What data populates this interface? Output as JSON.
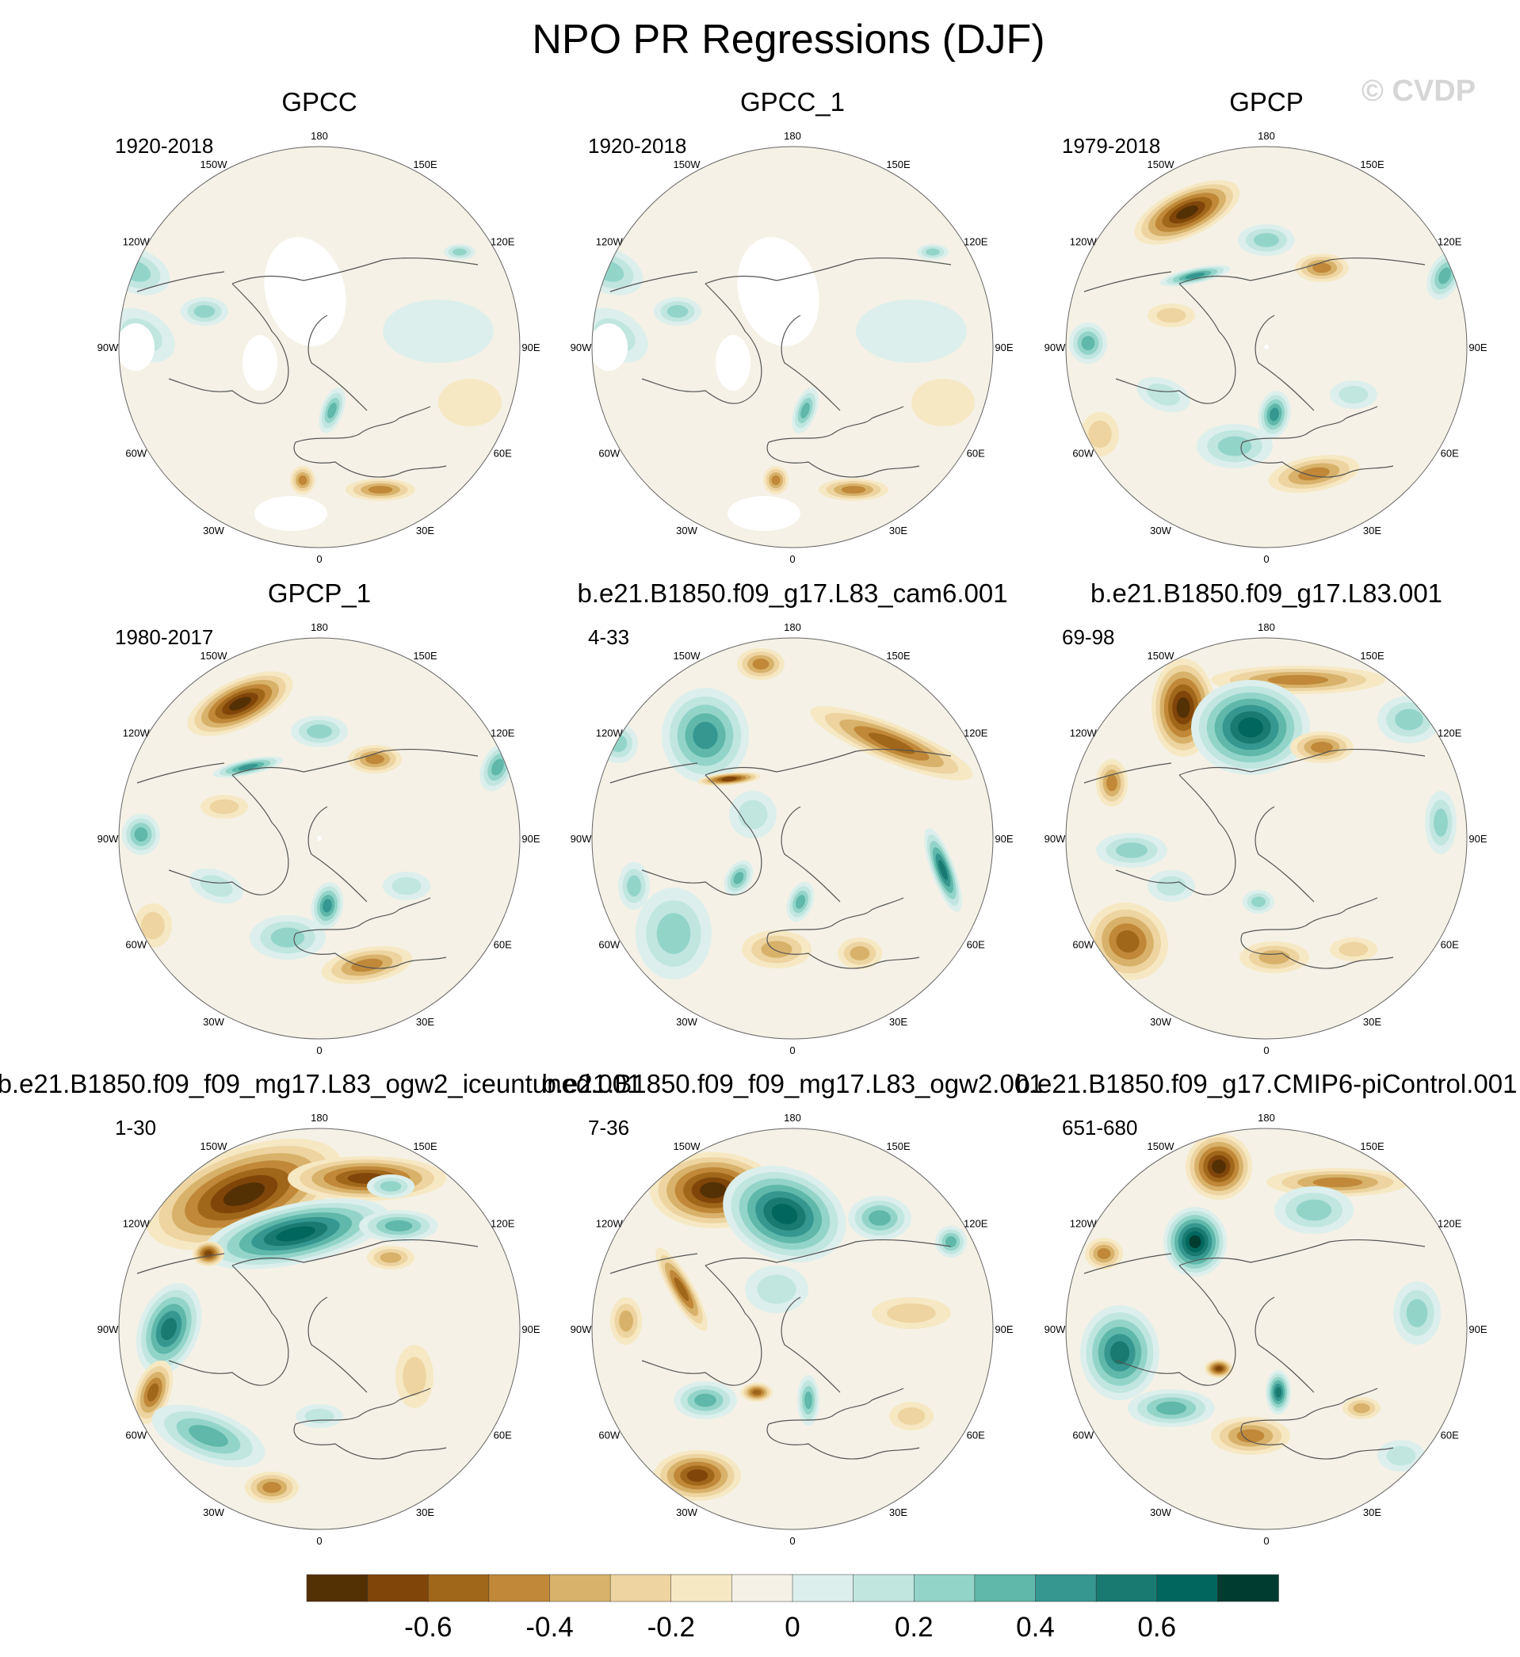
{
  "chart_data": {
    "type": "heatmap",
    "projection": "north-polar-stereographic",
    "title": "NPO PR Regressions (DJF)",
    "watermark": "© CVDP",
    "longitude_labels": [
      "180",
      "150E",
      "120E",
      "90E",
      "60E",
      "30E",
      "0",
      "30W",
      "60W",
      "90W",
      "120W",
      "150W"
    ],
    "panels": [
      {
        "name": "GPCC",
        "period": "1920-2018",
        "pattern": "obs-gpcc"
      },
      {
        "name": "GPCC_1",
        "period": "1920-2018",
        "pattern": "obs-gpcc"
      },
      {
        "name": "GPCP",
        "period": "1979-2018",
        "pattern": "obs-gpcp"
      },
      {
        "name": "GPCP_1",
        "period": "1980-2017",
        "pattern": "obs-gpcp"
      },
      {
        "name": "b.e21.B1850.f09_g17.L83_cam6.001",
        "period": "4-33",
        "pattern": "model-a"
      },
      {
        "name": "b.e21.B1850.f09_g17.L83.001",
        "period": "69-98",
        "pattern": "model-b"
      },
      {
        "name": "b.e21.B1850.f09_f09_mg17.L83_ogw2_iceuntuned.001",
        "period": "1-30",
        "pattern": "model-c"
      },
      {
        "name": "b.e21.B1850.f09_f09_mg17.L83_ogw2.001",
        "period": "7-36",
        "pattern": "model-d"
      },
      {
        "name": "b.e21.B1850.f09_g17.CMIP6-piControl.001",
        "period": "651-680",
        "pattern": "model-e"
      }
    ],
    "colorbar": {
      "levels": [
        -0.7,
        -0.6,
        -0.5,
        -0.4,
        -0.3,
        -0.2,
        -0.1,
        0,
        0.1,
        0.2,
        0.3,
        0.4,
        0.5,
        0.6,
        0.7
      ],
      "tick_labels": [
        "-0.6",
        "-0.4",
        "-0.2",
        "0",
        "0.2",
        "0.4",
        "0.6"
      ],
      "tick_values": [
        -0.6,
        -0.4,
        -0.2,
        0,
        0.2,
        0.4,
        0.6
      ],
      "colors": [
        "#543005",
        "#7f4509",
        "#a0661a",
        "#c08838",
        "#d8b26a",
        "#edd4a0",
        "#f6e8c3",
        "#f5f1e6",
        "#dcefec",
        "#c0e6df",
        "#93d4c9",
        "#5fb8aa",
        "#35978f",
        "#187a70",
        "#01665e",
        "#003c30"
      ]
    }
  }
}
